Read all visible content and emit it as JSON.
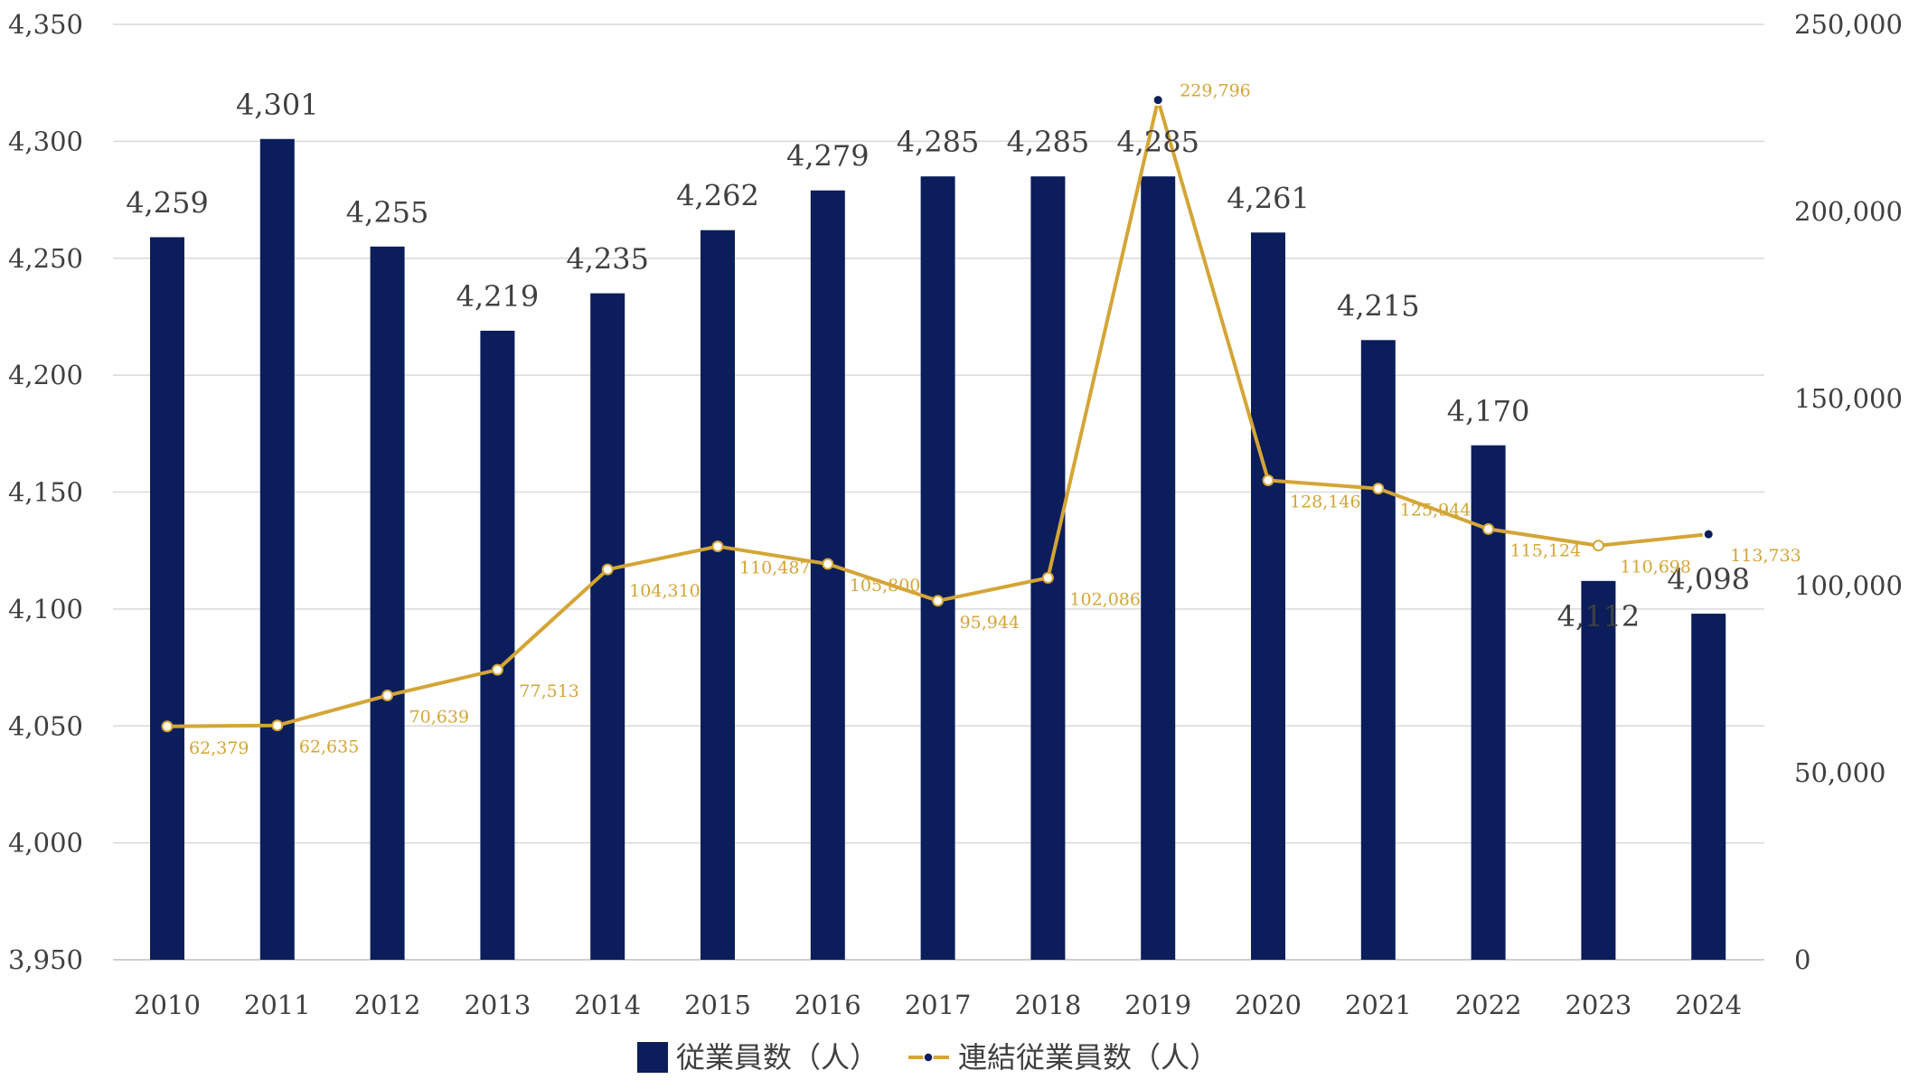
{
  "chart_data": {
    "type": "bar",
    "categories": [
      "2010",
      "2011",
      "2012",
      "2013",
      "2014",
      "2015",
      "2016",
      "2017",
      "2018",
      "2019",
      "2020",
      "2021",
      "2022",
      "2023",
      "2024"
    ],
    "series": [
      {
        "name": "従業員数（人）",
        "type": "bar",
        "axis": "left",
        "color": "#0B1E5B",
        "values": [
          4259,
          4301,
          4255,
          4219,
          4235,
          4262,
          4279,
          4285,
          4285,
          4285,
          4261,
          4215,
          4170,
          4112,
          4098
        ],
        "labels": [
          "4,259",
          "4,301",
          "4,255",
          "4,219",
          "4,235",
          "4,262",
          "4,279",
          "4,285",
          "4,285",
          "4,285",
          "4,261",
          "4,215",
          "4,170",
          "4,112",
          "4,098"
        ]
      },
      {
        "name": "連結従業員数（人）",
        "type": "line",
        "axis": "right",
        "color": "#D4A537",
        "values": [
          62379,
          62635,
          70639,
          77513,
          104310,
          110487,
          105800,
          95944,
          102086,
          229796,
          128146,
          125944,
          115124,
          110698,
          113733
        ],
        "labels": [
          "62,379",
          "62,635",
          "70,639",
          "77,513",
          "104,310",
          "110,487",
          "105,800",
          "95,944",
          "102,086",
          "229,796",
          "128,146",
          "125,944",
          "115,124",
          "110,698",
          "113,733"
        ]
      }
    ],
    "left_axis": {
      "ylim": [
        3950,
        4350
      ],
      "ticks": [
        3950,
        4000,
        4050,
        4100,
        4150,
        4200,
        4250,
        4300,
        4350
      ],
      "tick_labels": [
        "3,950",
        "4,000",
        "4,050",
        "4,100",
        "4,150",
        "4,200",
        "4,250",
        "4,300",
        "4,350"
      ]
    },
    "right_axis": {
      "ylim": [
        0,
        250000
      ],
      "ticks": [
        0,
        50000,
        100000,
        150000,
        200000,
        250000
      ],
      "tick_labels": [
        "0",
        "50,000",
        "100,000",
        "150,000",
        "200,000",
        "250,000"
      ]
    },
    "grid": true,
    "legend_position": "bottom",
    "title": "",
    "xlabel": "",
    "ylabel": ""
  }
}
